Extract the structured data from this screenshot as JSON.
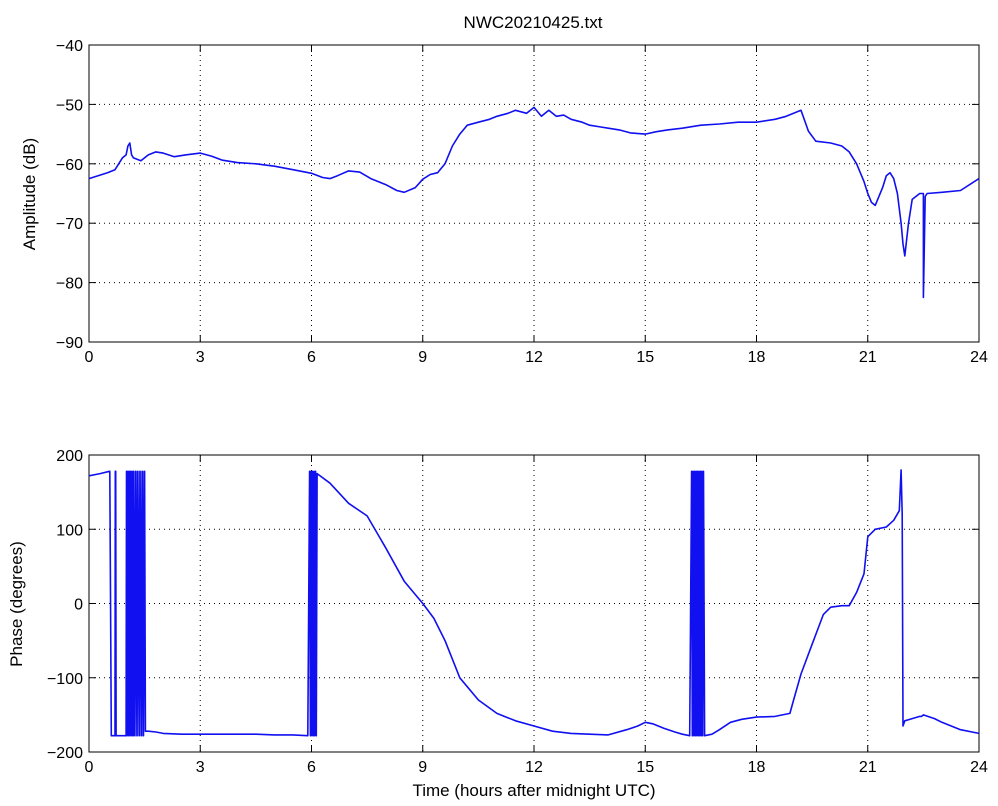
{
  "title": "NWC20210425.txt",
  "colors": {
    "series": "#1010f0",
    "axes": "#000000",
    "background": "#ffffff"
  },
  "chart_data": [
    {
      "type": "line",
      "id": "amplitude",
      "title": "NWC20210425.txt",
      "xlabel": "",
      "ylabel": "Amplitude (dB)",
      "xlim": [
        0,
        24
      ],
      "ylim": [
        -90,
        -40
      ],
      "xticks": [
        0,
        3,
        6,
        9,
        12,
        15,
        18,
        21,
        24
      ],
      "yticks": [
        -90,
        -80,
        -70,
        -60,
        -50,
        -40
      ],
      "xtick_labels": [
        "0",
        "3",
        "6",
        "9",
        "12",
        "15",
        "18",
        "21",
        "24"
      ],
      "ytick_labels": [
        "−90",
        "−80",
        "−70",
        "−60",
        "−50",
        "−40"
      ],
      "grid": true,
      "series": [
        {
          "x": [
            0,
            0.5,
            0.7,
            0.9,
            1.0,
            1.05,
            1.1,
            1.15,
            1.2,
            1.4,
            1.6,
            1.8,
            2.0,
            2.3,
            2.6,
            3.0,
            3.3,
            3.6,
            4.0,
            4.5,
            5.0,
            5.5,
            6.0,
            6.3,
            6.5,
            6.7,
            7.0,
            7.3,
            7.6,
            8.0,
            8.3,
            8.5,
            8.8,
            9.0,
            9.2,
            9.4,
            9.6,
            9.8,
            10.0,
            10.2,
            10.5,
            10.8,
            11.0,
            11.3,
            11.5,
            11.8,
            12.0,
            12.2,
            12.4,
            12.6,
            12.8,
            13.0,
            13.3,
            13.5,
            13.8,
            14.0,
            14.3,
            14.6,
            15.0,
            15.3,
            15.6,
            16.0,
            16.5,
            17.0,
            17.5,
            18.0,
            18.5,
            18.8,
            19.0,
            19.2,
            19.4,
            19.6,
            20.0,
            20.3,
            20.5,
            20.7,
            20.9,
            21.0,
            21.1,
            21.2,
            21.4,
            21.5,
            21.6,
            21.7,
            21.8,
            21.9,
            21.95,
            22.0,
            22.1,
            22.2,
            22.4,
            22.5,
            22.5,
            22.55,
            22.6,
            23.0,
            23.5,
            24.0
          ],
          "values": [
            -62.5,
            -61.5,
            -61.0,
            -59.0,
            -58.5,
            -57.0,
            -56.5,
            -58.5,
            -59.0,
            -59.5,
            -58.5,
            -58.0,
            -58.2,
            -58.8,
            -58.5,
            -58.2,
            -58.7,
            -59.4,
            -59.8,
            -60.0,
            -60.4,
            -61.0,
            -61.6,
            -62.3,
            -62.5,
            -62.0,
            -61.2,
            -61.4,
            -62.5,
            -63.5,
            -64.5,
            -64.8,
            -64.0,
            -62.6,
            -61.8,
            -61.5,
            -60.0,
            -57.0,
            -55.0,
            -53.5,
            -53.0,
            -52.5,
            -52.0,
            -51.5,
            -51.0,
            -51.5,
            -50.5,
            -52.0,
            -51.0,
            -52.0,
            -51.8,
            -52.5,
            -53.0,
            -53.5,
            -53.8,
            -54.0,
            -54.3,
            -54.8,
            -55.0,
            -54.6,
            -54.3,
            -54.0,
            -53.5,
            -53.3,
            -53.0,
            -53.0,
            -52.5,
            -52.0,
            -51.5,
            -51.0,
            -54.5,
            -56.2,
            -56.5,
            -57.0,
            -58.0,
            -60.0,
            -63.0,
            -65.0,
            -66.5,
            -67.0,
            -64.0,
            -62.0,
            -61.5,
            -62.5,
            -65.0,
            -70.0,
            -73.5,
            -75.5,
            -70.0,
            -66.0,
            -65.0,
            -65.0,
            -82.5,
            -65.5,
            -65.0,
            -64.8,
            -64.5,
            -62.5
          ]
        }
      ]
    },
    {
      "type": "line",
      "id": "phase",
      "title": "",
      "xlabel": "Time (hours after midnight UTC)",
      "ylabel": "Phase (degrees)",
      "xlim": [
        0,
        24
      ],
      "ylim": [
        -200,
        200
      ],
      "xticks": [
        0,
        3,
        6,
        9,
        12,
        15,
        18,
        21,
        24
      ],
      "yticks": [
        -200,
        -100,
        0,
        100,
        200
      ],
      "xtick_labels": [
        "0",
        "3",
        "6",
        "9",
        "12",
        "15",
        "18",
        "21",
        "24"
      ],
      "ytick_labels": [
        "−200",
        "−100",
        "0",
        "100",
        "200"
      ],
      "grid": true,
      "series": [
        {
          "x": [
            0,
            0.3,
            0.55,
            0.56,
            0.6,
            0.65,
            0.7,
            0.71,
            0.72,
            0.73,
            0.75,
            1.0,
            1.01,
            1.02,
            1.05,
            1.06,
            1.08,
            1.1,
            1.12,
            1.14,
            1.16,
            1.18,
            1.2,
            1.22,
            1.25,
            1.27,
            1.3,
            1.32,
            1.35,
            1.37,
            1.4,
            1.42,
            1.45,
            1.47,
            1.5,
            1.52,
            1.55,
            1.6,
            1.8,
            2.0,
            2.5,
            3.0,
            3.5,
            4.0,
            4.5,
            5.0,
            5.5,
            5.9,
            5.95,
            5.97,
            5.99,
            6.01,
            6.03,
            6.05,
            6.07,
            6.09,
            6.11,
            6.13,
            6.15,
            6.5,
            7.0,
            7.5,
            8.0,
            8.5,
            9.0,
            9.3,
            9.6,
            10.0,
            10.5,
            11.0,
            11.5,
            12.0,
            12.5,
            13.0,
            13.5,
            14.0,
            14.5,
            14.8,
            15.0,
            15.2,
            15.5,
            15.8,
            16.0,
            16.2,
            16.25,
            16.27,
            16.29,
            16.31,
            16.33,
            16.35,
            16.37,
            16.39,
            16.41,
            16.43,
            16.45,
            16.47,
            16.49,
            16.51,
            16.53,
            16.55,
            16.57,
            16.6,
            16.8,
            17.0,
            17.3,
            17.6,
            18.0,
            18.5,
            18.9,
            19.0,
            19.2,
            19.5,
            19.8,
            20.0,
            20.3,
            20.5,
            20.7,
            20.9,
            21.0,
            21.2,
            21.5,
            21.7,
            21.85,
            21.9,
            21.93,
            21.95,
            22.0,
            22.2,
            22.4,
            22.45,
            22.5,
            22.8,
            23.0,
            23.5,
            24.0
          ],
          "values": [
            172,
            175,
            178,
            178,
            -178,
            -178,
            -178,
            178,
            178,
            -178,
            -178,
            -178,
            178,
            -178,
            178,
            -178,
            178,
            -178,
            178,
            -178,
            178,
            -178,
            178,
            -178,
            178,
            -178,
            178,
            -178,
            178,
            -178,
            178,
            -178,
            178,
            -178,
            178,
            -172,
            -172,
            -172,
            -173,
            -175,
            -176,
            -176,
            -176,
            -176,
            -176,
            -177,
            -177,
            -178,
            178,
            -178,
            178,
            -178,
            178,
            -178,
            178,
            -178,
            178,
            -178,
            175,
            162,
            135,
            118,
            75,
            30,
            0,
            -20,
            -50,
            -100,
            -130,
            -148,
            -158,
            -165,
            -172,
            -175,
            -176,
            -177,
            -170,
            -165,
            -160,
            -162,
            -168,
            -173,
            -176,
            -178,
            178,
            -178,
            178,
            -178,
            178,
            -178,
            178,
            -178,
            178,
            -178,
            178,
            -178,
            178,
            -178,
            178,
            -178,
            178,
            -178,
            -176,
            -170,
            -160,
            -156,
            -153,
            -152,
            -148,
            -130,
            -95,
            -55,
            -15,
            -5,
            -3,
            -3,
            15,
            40,
            90,
            100,
            103,
            112,
            125,
            180,
            120,
            -165,
            -158,
            -155,
            -152,
            -152,
            -150,
            -155,
            -160,
            -170,
            -175
          ]
        }
      ]
    }
  ]
}
